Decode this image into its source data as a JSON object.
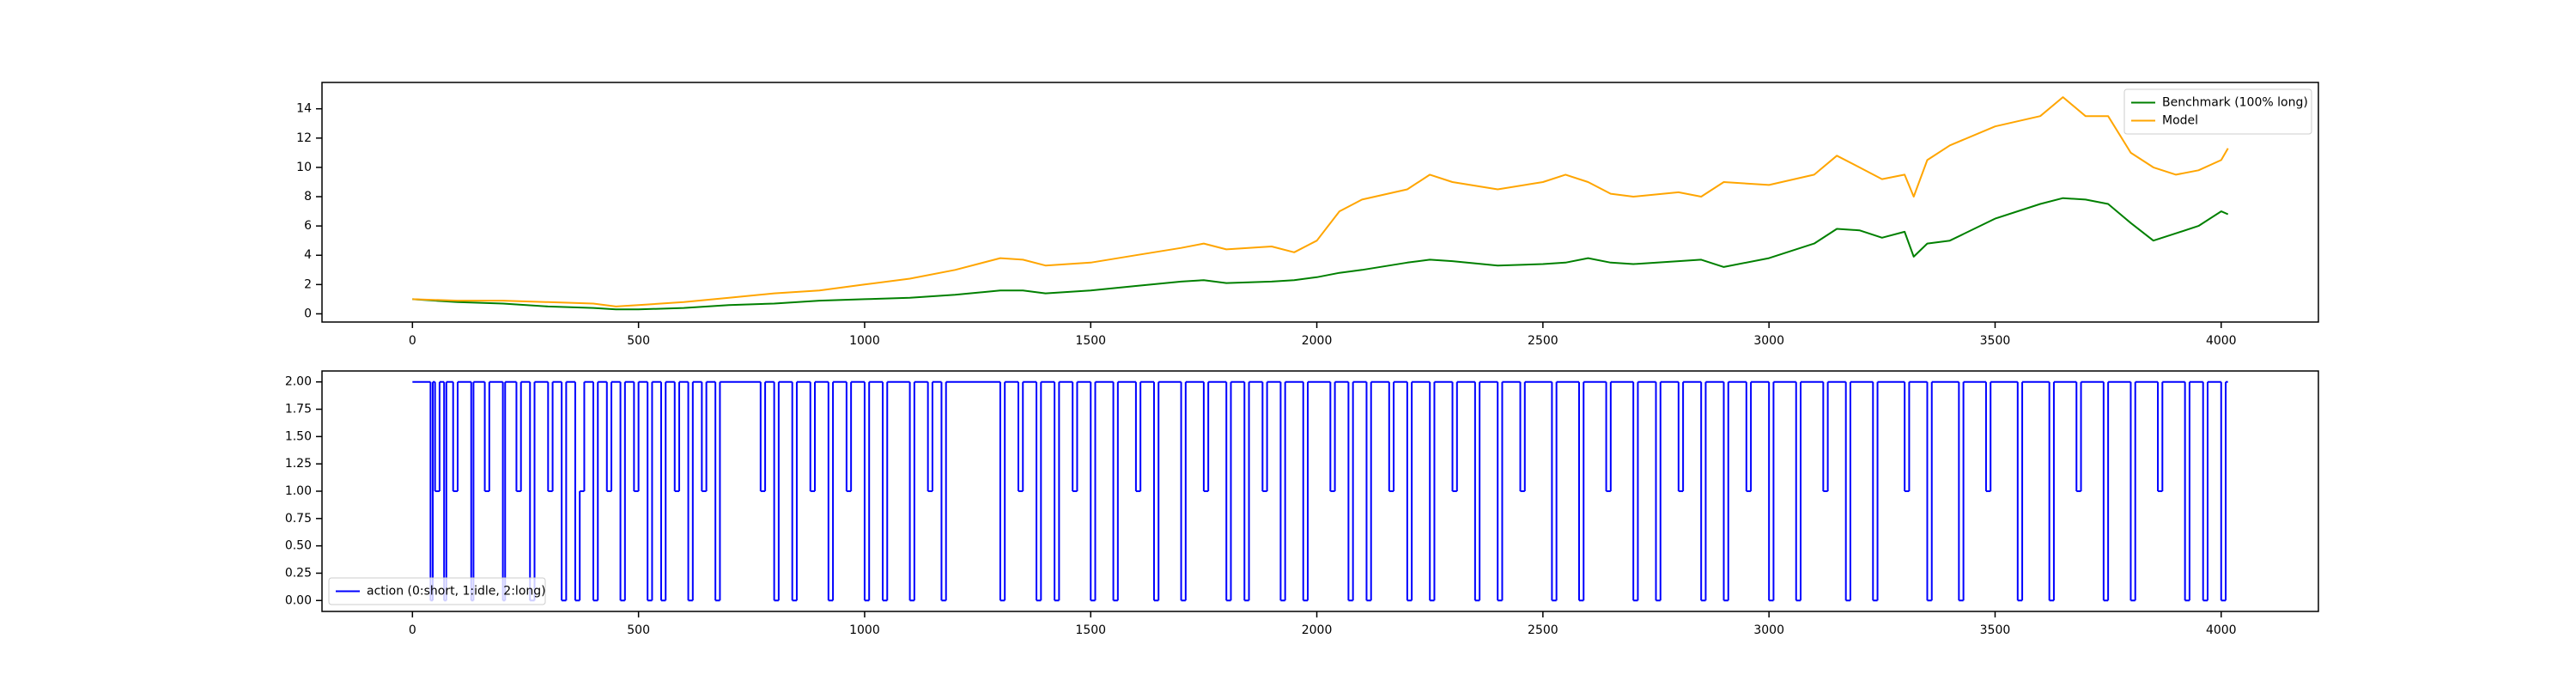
{
  "chart_data": [
    {
      "type": "line",
      "x": [
        0,
        100,
        200,
        300,
        400,
        450,
        500,
        600,
        700,
        800,
        900,
        1000,
        1100,
        1200,
        1300,
        1350,
        1400,
        1500,
        1600,
        1700,
        1750,
        1800,
        1900,
        1950,
        2000,
        2050,
        2100,
        2200,
        2250,
        2300,
        2400,
        2500,
        2550,
        2600,
        2650,
        2700,
        2800,
        2850,
        2900,
        3000,
        3100,
        3150,
        3200,
        3250,
        3300,
        3320,
        3350,
        3400,
        3500,
        3600,
        3650,
        3700,
        3750,
        3800,
        3850,
        3900,
        3950,
        4000,
        4015
      ],
      "series": [
        {
          "name": "Benchmark (100% long)",
          "color": "#008000",
          "values": [
            1.0,
            0.8,
            0.7,
            0.5,
            0.4,
            0.3,
            0.3,
            0.4,
            0.6,
            0.7,
            0.9,
            1.0,
            1.1,
            1.3,
            1.6,
            1.6,
            1.4,
            1.6,
            1.9,
            2.2,
            2.3,
            2.1,
            2.2,
            2.3,
            2.5,
            2.8,
            3.0,
            3.5,
            3.7,
            3.6,
            3.3,
            3.4,
            3.5,
            3.8,
            3.5,
            3.4,
            3.6,
            3.7,
            3.2,
            3.8,
            4.8,
            5.8,
            5.7,
            5.2,
            5.6,
            3.9,
            4.8,
            5.0,
            6.5,
            7.5,
            7.9,
            7.8,
            7.5,
            6.2,
            5.0,
            5.5,
            6.0,
            7.0,
            6.8
          ]
        },
        {
          "name": "Model",
          "color": "#ffa500",
          "values": [
            1.0,
            0.9,
            0.9,
            0.8,
            0.7,
            0.5,
            0.6,
            0.8,
            1.1,
            1.4,
            1.6,
            2.0,
            2.4,
            3.0,
            3.8,
            3.7,
            3.3,
            3.5,
            4.0,
            4.5,
            4.8,
            4.4,
            4.6,
            4.2,
            5.0,
            7.0,
            7.8,
            8.5,
            9.5,
            9.0,
            8.5,
            9.0,
            9.5,
            9.0,
            8.2,
            8.0,
            8.3,
            8.0,
            9.0,
            8.8,
            9.5,
            10.8,
            10.0,
            9.2,
            9.5,
            8.0,
            10.5,
            11.5,
            12.8,
            13.5,
            14.8,
            13.5,
            13.5,
            11.0,
            10.0,
            9.5,
            9.8,
            10.5,
            11.3
          ]
        }
      ],
      "xlim": [
        -200,
        4215
      ],
      "xticks": [
        0,
        500,
        1000,
        1500,
        2000,
        2500,
        3000,
        3500,
        4000
      ],
      "ylim": [
        -0.56,
        15.8
      ],
      "yticks": [
        0,
        2,
        4,
        6,
        8,
        10,
        12,
        14
      ],
      "legend": "upper right"
    },
    {
      "type": "step",
      "x": [
        0,
        40,
        45,
        50,
        60,
        70,
        75,
        90,
        100,
        130,
        135,
        160,
        170,
        200,
        205,
        230,
        240,
        260,
        270,
        300,
        310,
        330,
        340,
        360,
        370,
        380,
        400,
        410,
        430,
        440,
        460,
        470,
        490,
        500,
        520,
        530,
        550,
        560,
        580,
        590,
        610,
        620,
        640,
        650,
        670,
        680,
        770,
        780,
        800,
        810,
        840,
        850,
        880,
        890,
        920,
        930,
        960,
        970,
        1000,
        1010,
        1040,
        1050,
        1100,
        1110,
        1140,
        1150,
        1170,
        1180,
        1300,
        1310,
        1340,
        1350,
        1380,
        1390,
        1420,
        1430,
        1460,
        1470,
        1500,
        1510,
        1550,
        1560,
        1600,
        1610,
        1640,
        1650,
        1700,
        1710,
        1750,
        1760,
        1800,
        1810,
        1840,
        1850,
        1880,
        1890,
        1920,
        1930,
        1970,
        1980,
        2030,
        2040,
        2070,
        2080,
        2110,
        2120,
        2160,
        2170,
        2200,
        2210,
        2250,
        2260,
        2300,
        2310,
        2350,
        2360,
        2400,
        2410,
        2450,
        2460,
        2520,
        2530,
        2580,
        2590,
        2640,
        2650,
        2700,
        2710,
        2750,
        2760,
        2800,
        2810,
        2850,
        2860,
        2900,
        2910,
        2950,
        2960,
        3000,
        3010,
        3060,
        3070,
        3120,
        3130,
        3170,
        3180,
        3230,
        3240,
        3300,
        3310,
        3350,
        3360,
        3420,
        3430,
        3480,
        3490,
        3550,
        3560,
        3620,
        3630,
        3680,
        3690,
        3740,
        3750,
        3800,
        3810,
        3860,
        3870,
        3920,
        3930,
        3960,
        3970,
        4000,
        4010,
        4015
      ],
      "series": [
        {
          "name": "action (0:short, 1:idle, 2:long)",
          "color": "#0000ff",
          "values": [
            2,
            0,
            2,
            1,
            2,
            0,
            2,
            1,
            2,
            0,
            2,
            1,
            2,
            0,
            2,
            1,
            2,
            0,
            2,
            1,
            2,
            0,
            2,
            0,
            1,
            2,
            0,
            2,
            1,
            2,
            0,
            2,
            1,
            2,
            0,
            2,
            0,
            2,
            1,
            2,
            0,
            2,
            1,
            2,
            0,
            2,
            1,
            2,
            0,
            2,
            0,
            2,
            1,
            2,
            0,
            2,
            1,
            2,
            0,
            2,
            0,
            2,
            0,
            2,
            1,
            2,
            0,
            2,
            0,
            2,
            1,
            2,
            0,
            2,
            0,
            2,
            1,
            2,
            0,
            2,
            0,
            2,
            1,
            2,
            0,
            2,
            0,
            2,
            1,
            2,
            0,
            2,
            0,
            2,
            1,
            2,
            0,
            2,
            0,
            2,
            1,
            2,
            0,
            2,
            0,
            2,
            1,
            2,
            0,
            2,
            0,
            2,
            1,
            2,
            0,
            2,
            0,
            2,
            1,
            2,
            0,
            2,
            0,
            2,
            1,
            2,
            0,
            2,
            0,
            2,
            1,
            2,
            0,
            2,
            0,
            2,
            1,
            2,
            0,
            2,
            0,
            2,
            1,
            2,
            0,
            2,
            0,
            2,
            1,
            2,
            0,
            2,
            0,
            2,
            1,
            2,
            0,
            2,
            0,
            2,
            1,
            2,
            0,
            2,
            0,
            2,
            1,
            2,
            0,
            2,
            0,
            2,
            0,
            2,
            2
          ]
        }
      ],
      "xlim": [
        -200,
        4215
      ],
      "xticks": [
        0,
        500,
        1000,
        1500,
        2000,
        2500,
        3000,
        3500,
        4000
      ],
      "ylim": [
        -0.1,
        2.1
      ],
      "yticks": [
        {
          "value": 0,
          "label": "0.00"
        },
        {
          "value": 0.25,
          "label": "0.25"
        },
        {
          "value": 0.5,
          "label": "0.50"
        },
        {
          "value": 0.75,
          "label": "0.75"
        },
        {
          "value": 1,
          "label": "1.00"
        },
        {
          "value": 1.25,
          "label": "1.25"
        },
        {
          "value": 1.5,
          "label": "1.50"
        },
        {
          "value": 1.75,
          "label": "1.75"
        },
        {
          "value": 2,
          "label": "2.00"
        }
      ],
      "legend": "lower left"
    }
  ]
}
